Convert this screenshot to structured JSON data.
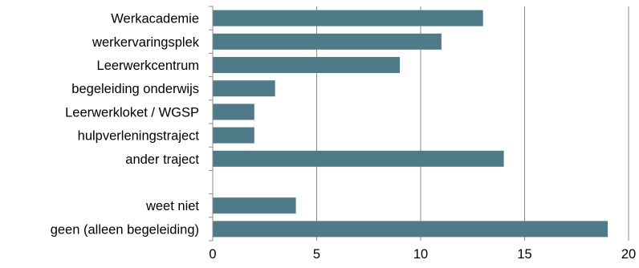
{
  "chart_data": {
    "type": "bar",
    "orientation": "horizontal",
    "title": "",
    "xlabel": "",
    "ylabel": "",
    "categories": [
      "Werkacademie",
      "werkervaringsplek",
      "Leerwerkcentrum",
      "begeleiding onderwijs",
      "Leerwerkloket / WGSP",
      "hulpverleningstraject",
      "ander traject",
      "",
      "weet niet",
      "geen (alleen begeleiding)"
    ],
    "values": [
      13,
      11,
      9,
      3,
      2,
      2,
      14,
      null,
      4,
      19
    ],
    "xlim": [
      0,
      20
    ],
    "xticks": [
      "0",
      "5",
      "10",
      "15",
      "20"
    ],
    "grid": "vertical",
    "colors": {
      "bar": "#4f7a87",
      "grid": "#8c8c8c",
      "axis": "#8c8c8c"
    }
  }
}
